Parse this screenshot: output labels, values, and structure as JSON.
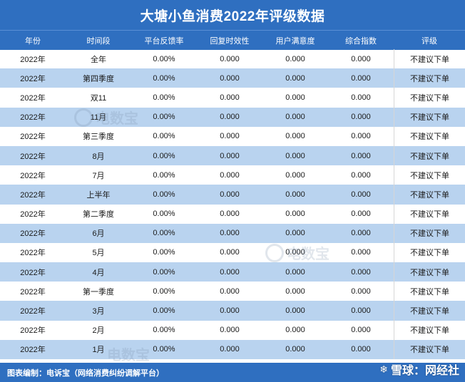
{
  "title": "大塘小鱼消费2022年评级数据",
  "columns": [
    "年份",
    "时间段",
    "平台反馈率",
    "回复时效性",
    "用户满意度",
    "综合指数",
    "评级"
  ],
  "rows": [
    [
      "2022年",
      "全年",
      "0.00%",
      "0.000",
      "0.000",
      "0.000",
      "不建议下单"
    ],
    [
      "2022年",
      "第四季度",
      "0.00%",
      "0.000",
      "0.000",
      "0.000",
      "不建议下单"
    ],
    [
      "2022年",
      "双11",
      "0.00%",
      "0.000",
      "0.000",
      "0.000",
      "不建议下单"
    ],
    [
      "2022年",
      "11月",
      "0.00%",
      "0.000",
      "0.000",
      "0.000",
      "不建议下单"
    ],
    [
      "2022年",
      "第三季度",
      "0.00%",
      "0.000",
      "0.000",
      "0.000",
      "不建议下单"
    ],
    [
      "2022年",
      "8月",
      "0.00%",
      "0.000",
      "0.000",
      "0.000",
      "不建议下单"
    ],
    [
      "2022年",
      "7月",
      "0.00%",
      "0.000",
      "0.000",
      "0.000",
      "不建议下单"
    ],
    [
      "2022年",
      "上半年",
      "0.00%",
      "0.000",
      "0.000",
      "0.000",
      "不建议下单"
    ],
    [
      "2022年",
      "第二季度",
      "0.00%",
      "0.000",
      "0.000",
      "0.000",
      "不建议下单"
    ],
    [
      "2022年",
      "6月",
      "0.00%",
      "0.000",
      "0.000",
      "0.000",
      "不建议下单"
    ],
    [
      "2022年",
      "5月",
      "0.00%",
      "0.000",
      "0.000",
      "0.000",
      "不建议下单"
    ],
    [
      "2022年",
      "4月",
      "0.00%",
      "0.000",
      "0.000",
      "0.000",
      "不建议下单"
    ],
    [
      "2022年",
      "第一季度",
      "0.00%",
      "0.000",
      "0.000",
      "0.000",
      "不建议下单"
    ],
    [
      "2022年",
      "3月",
      "0.00%",
      "0.000",
      "0.000",
      "0.000",
      "不建议下单"
    ],
    [
      "2022年",
      "2月",
      "0.00%",
      "0.000",
      "0.000",
      "0.000",
      "不建议下单"
    ],
    [
      "2022年",
      "1月",
      "0.00%",
      "0.000",
      "0.000",
      "0.000",
      "不建议下单"
    ]
  ],
  "footer": "图表编制：电诉宝（网络消费纠纷调解平台）",
  "watermark": "电数宝",
  "corner_watermark": "雪球：网经社",
  "colors": {
    "header_bg": "#2f6fc0",
    "alt_row_bg": "#b9d3ef",
    "white_row_bg": "#ffffff"
  }
}
